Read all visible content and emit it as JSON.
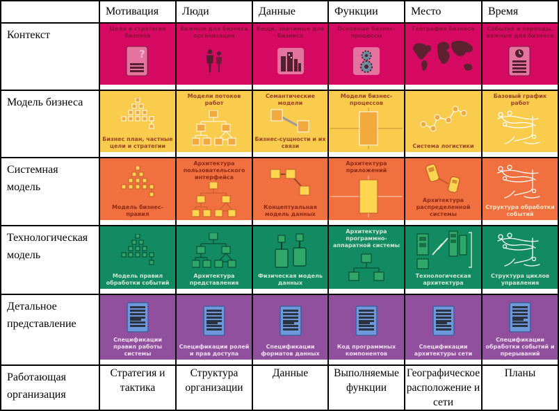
{
  "header": {
    "corner": "",
    "columns": [
      "Мотивация",
      "Люди",
      "Данные",
      "Функции",
      "Место",
      "Время"
    ]
  },
  "rows": [
    {
      "label": "Контекст",
      "color": "#d60a62",
      "text_color": "#8a1238",
      "icon_palette": {
        "light": "#e4739f",
        "dark": "#54202f",
        "mid": "#f2b6cd",
        "map": "#5e2130",
        "gear": "#6f8fa0"
      },
      "cells": [
        {
          "label": "Цели и стратегия бизнеса",
          "icon": "doc-question",
          "label_pos": "top"
        },
        {
          "label": "Важные для бизнеса организации",
          "icon": "people",
          "label_pos": "top"
        },
        {
          "label": "Вещи, значимые для бизнеса",
          "icon": "city",
          "label_pos": "top"
        },
        {
          "label": "Основные бизнес-процессы",
          "icon": "gears",
          "label_pos": "top"
        },
        {
          "label": "География бизнеса",
          "icon": "world-map",
          "label_pos": "top"
        },
        {
          "label": "События и периоды, важные для бизнеса",
          "icon": "doc-clock",
          "label_pos": "top"
        }
      ]
    },
    {
      "label": "Модель бизнеса",
      "color": "#f9cc4e",
      "text_color": "#9c4423",
      "icon_palette": {
        "box": "#f2a93e",
        "outline": "#ffffff",
        "link": "#9a9a9a",
        "cross": "#dfae3f"
      },
      "cells": [
        {
          "label": "Бизнес план, частные цели и стратегии",
          "icon": "pyramid",
          "label_pos": "bottom"
        },
        {
          "label": "Модели потоков работ",
          "icon": "org-tree",
          "label_pos": "top"
        },
        {
          "label": "Семантические модели",
          "label2": "Бизнес-сущности и их связи",
          "icon": "linked-2",
          "label_pos": "both"
        },
        {
          "label": "Модели бизнес-процессов",
          "icon": "process-cross",
          "label_pos": "top"
        },
        {
          "label": "Система логистики",
          "icon": "network",
          "label_pos": "bottom"
        },
        {
          "label": "Базовый график работ",
          "icon": "sketch",
          "label_pos": "top"
        }
      ]
    },
    {
      "label": "Системная модель",
      "color": "#f0713f",
      "text_color": "#8e2a15",
      "icon_palette": {
        "box": "#ffd44f",
        "outline": "#c25a2a",
        "link": "#8a4a2a",
        "cross": "#f5a57d"
      },
      "cells": [
        {
          "label": "Модель бизнес-правил",
          "icon": "pyramid",
          "label_pos": "bottom"
        },
        {
          "label": "Архитектура пользовательского интерфейса",
          "icon": "org-tree",
          "label_pos": "top"
        },
        {
          "label": "Концептуальная модель данных",
          "icon": "linked-3",
          "label_pos": "bottom"
        },
        {
          "label": "Архитектура приложений",
          "icon": "process-cross",
          "label_pos": "top"
        },
        {
          "label": "Архитектура распределенной системы",
          "icon": "devices",
          "label_pos": "bottom"
        },
        {
          "label": "Структура обработки событий",
          "icon": "sketch",
          "label_pos": "bottom",
          "text_color": "#f7e3c6"
        }
      ]
    },
    {
      "label": "Технологическая модель",
      "color": "#128a62",
      "text_color": "#cfe6d4",
      "icon_palette": {
        "box": "#2fa768",
        "outline": "#06402c",
        "link": "#d8ecd8",
        "cross": "#3fae74",
        "bolt": "#d8ecd8"
      },
      "cells": [
        {
          "label": "Модель правил обработки событий",
          "icon": "pyramid",
          "label_pos": "bottom"
        },
        {
          "label": "Архитектура представления",
          "icon": "org-tree",
          "label_pos": "bottom"
        },
        {
          "label": "Физическая модель данных",
          "icon": "cylinders",
          "label_pos": "bottom"
        },
        {
          "label": "Архитектура программно-аппаратной системы",
          "icon": "tree-3",
          "label_pos": "top"
        },
        {
          "label": "Технологическая архитектура",
          "icon": "racks-lightning",
          "label_pos": "bottom"
        },
        {
          "label": "Структура циклов управления",
          "icon": "sketch",
          "label_pos": "bottom"
        }
      ]
    },
    {
      "label": "Детальное представление",
      "color": "#91509e",
      "text_color": "#efdcef",
      "icon_palette": {
        "doc": "#6d99da",
        "border": "#3f5f9e",
        "stripe": "#2c3340"
      },
      "cells": [
        {
          "label": "Спецификации правил работы системы",
          "icon": "doc-spec",
          "label_pos": "bottom"
        },
        {
          "label": "Спецификации ролей и прав доступа",
          "icon": "doc-spec",
          "label_pos": "bottom"
        },
        {
          "label": "Спецификации форматов данных",
          "icon": "doc-spec",
          "label_pos": "bottom"
        },
        {
          "label": "Код программных компонентов",
          "icon": "doc-spec",
          "label_pos": "bottom"
        },
        {
          "label": "Спецификации архитектуры сети",
          "icon": "doc-spec",
          "label_pos": "bottom"
        },
        {
          "label": "Спецификации обработки событий и прерываний",
          "icon": "doc-spec",
          "label_pos": "bottom"
        }
      ]
    }
  ],
  "footer": {
    "label": "Работающая организация",
    "cells": [
      "Стратегия и тактика",
      "Структура организации",
      "Данные",
      "Выполняемые функции",
      "Географическое расположение и сети",
      "Планы"
    ]
  }
}
